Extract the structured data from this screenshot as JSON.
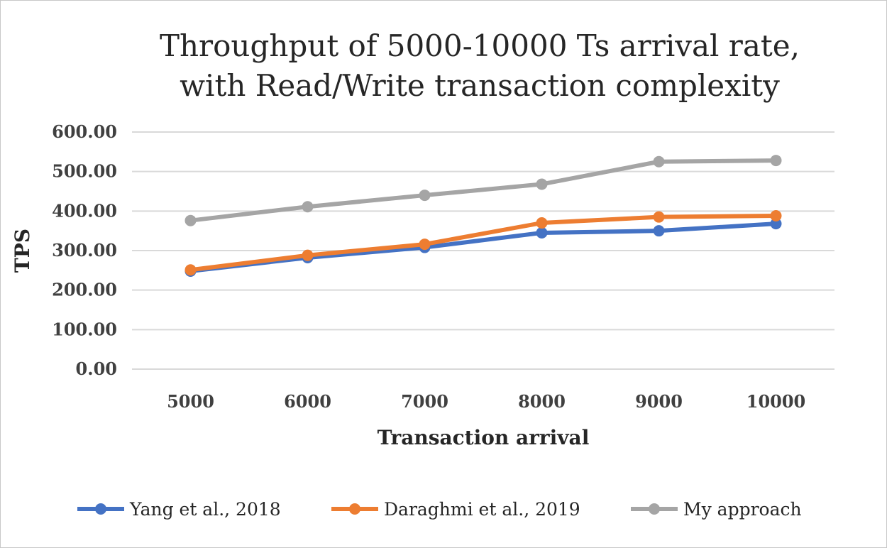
{
  "chart_data": {
    "type": "line",
    "title_line1": "Throughput of 5000-10000 Ts arrival rate,",
    "title_line2": "with Read/Write transaction complexity",
    "xlabel": "Transaction arrival",
    "ylabel": "TPS",
    "categories": [
      "5000",
      "6000",
      "7000",
      "8000",
      "9000",
      "10000"
    ],
    "yticks": [
      "0.00",
      "100.00",
      "200.00",
      "300.00",
      "400.00",
      "500.00",
      "600.00"
    ],
    "ylim": [
      0,
      600
    ],
    "grid": true,
    "legend_position": "bottom",
    "series": [
      {
        "name": "Yang et al., 2018",
        "color": "#4472c4",
        "values": [
          248,
          282,
          308,
          345,
          350,
          368
        ]
      },
      {
        "name": "Daraghmi et al., 2019",
        "color": "#ed7d31",
        "values": [
          251,
          288,
          316,
          370,
          385,
          388
        ]
      },
      {
        "name": "My approach",
        "color": "#a5a5a5",
        "values": [
          376,
          411,
          440,
          468,
          525,
          528
        ]
      }
    ]
  }
}
